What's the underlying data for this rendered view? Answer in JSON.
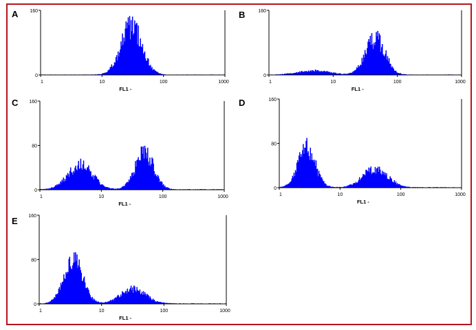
{
  "panels": [
    {
      "label": "A"
    },
    {
      "label": "B"
    },
    {
      "label": "C"
    },
    {
      "label": "D"
    },
    {
      "label": "E"
    }
  ],
  "colors": {
    "frame": "#b3141a",
    "bars": "#0000ff",
    "axis": "#000000"
  },
  "chart_data": [
    {
      "type": "bar",
      "panel": "A",
      "xscale": "log",
      "xlim": [
        1,
        1000
      ],
      "ylim": [
        0,
        160
      ],
      "yticks": [
        0,
        160
      ],
      "xticks": [
        1,
        10,
        100,
        1000
      ],
      "xlabel": "FL1 -",
      "ylabel": "",
      "components": [
        {
          "center": 30,
          "sigma_log": 0.17,
          "peak": 120
        }
      ]
    },
    {
      "type": "bar",
      "panel": "B",
      "xscale": "log",
      "xlim": [
        1,
        1000
      ],
      "ylim": [
        0,
        160
      ],
      "yticks": [
        0,
        160
      ],
      "xticks": [
        1,
        10,
        100,
        1000
      ],
      "xlabel": "FL1 -",
      "ylabel": "",
      "components": [
        {
          "center": 5,
          "sigma_log": 0.25,
          "peak": 10
        },
        {
          "center": 45,
          "sigma_log": 0.15,
          "peak": 90
        }
      ]
    },
    {
      "type": "bar",
      "panel": "C",
      "xscale": "log",
      "xlim": [
        1,
        1000
      ],
      "ylim": [
        0,
        160
      ],
      "yticks": [
        0,
        80,
        160
      ],
      "xticks": [
        1,
        10,
        100,
        1000
      ],
      "xlabel": "FL1 -",
      "ylabel": "",
      "components": [
        {
          "center": 4.5,
          "sigma_log": 0.2,
          "peak": 44
        },
        {
          "center": 50,
          "sigma_log": 0.15,
          "peak": 65
        }
      ]
    },
    {
      "type": "bar",
      "panel": "D",
      "xscale": "log",
      "xlim": [
        1,
        1000
      ],
      "ylim": [
        0,
        160
      ],
      "yticks": [
        0,
        80,
        160
      ],
      "xticks": [
        1,
        10,
        100,
        1000
      ],
      "xlabel": "FL1 -",
      "ylabel": "",
      "components": [
        {
          "center": 2.8,
          "sigma_log": 0.14,
          "peak": 70
        },
        {
          "center": 38,
          "sigma_log": 0.2,
          "peak": 34
        }
      ]
    },
    {
      "type": "bar",
      "panel": "E",
      "xscale": "log",
      "xlim": [
        1,
        1000
      ],
      "ylim": [
        0,
        160
      ],
      "yticks": [
        0,
        80,
        160
      ],
      "xticks": [
        1,
        10,
        100,
        1000
      ],
      "xlabel": "FL1 -",
      "ylabel": "",
      "components": [
        {
          "center": 3.5,
          "sigma_log": 0.15,
          "peak": 80
        },
        {
          "center": 32,
          "sigma_log": 0.2,
          "peak": 26
        }
      ]
    }
  ]
}
